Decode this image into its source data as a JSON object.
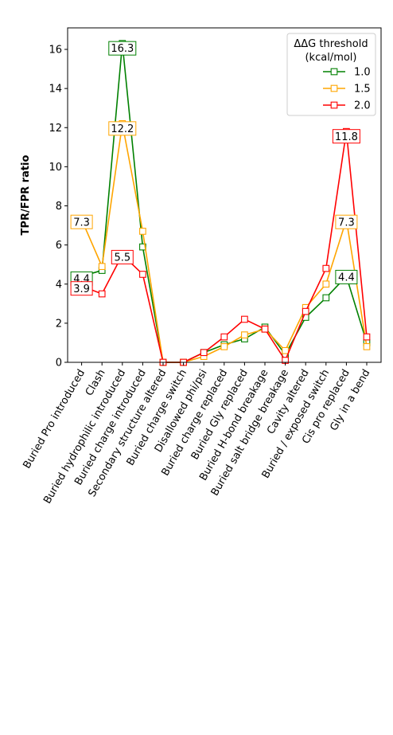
{
  "chart_data": {
    "type": "line",
    "categories": [
      "Buried Pro introduced",
      "Clash",
      "Buried hydrophilic introduced",
      "Buried charge introduced",
      "Secondary structure altered",
      "Buried charge switch",
      "Disallowed phi/psi",
      "Buried charge replaced",
      "Buried Gly replaced",
      "Buried H-bond breakage",
      "Buried salt bridge breakage",
      "Cavity altered",
      "Buried / exposed switch",
      "Cis pro replaced",
      "Gly in a bend"
    ],
    "series": [
      {
        "name": "1.0",
        "color": "#008000",
        "values": [
          4.4,
          4.7,
          16.3,
          5.9,
          0.0,
          0.0,
          0.5,
          0.9,
          1.2,
          1.8,
          0.4,
          2.3,
          3.3,
          4.4,
          1.0
        ]
      },
      {
        "name": "1.5",
        "color": "#FFA500",
        "values": [
          7.3,
          4.9,
          12.2,
          6.7,
          0.0,
          0.0,
          0.3,
          0.8,
          1.4,
          1.7,
          0.6,
          2.8,
          4.0,
          7.3,
          0.8
        ]
      },
      {
        "name": "2.0",
        "color": "#FF0000",
        "values": [
          3.9,
          3.5,
          5.5,
          4.5,
          0.0,
          0.0,
          0.5,
          1.3,
          2.2,
          1.7,
          0.1,
          2.6,
          4.8,
          11.8,
          1.3
        ]
      }
    ],
    "annotations": [
      {
        "series": 0,
        "index": 0,
        "text": "4.4"
      },
      {
        "series": 1,
        "index": 0,
        "text": "7.3"
      },
      {
        "series": 2,
        "index": 0,
        "text": "3.9"
      },
      {
        "series": 0,
        "index": 2,
        "text": "16.3"
      },
      {
        "series": 1,
        "index": 2,
        "text": "12.2"
      },
      {
        "series": 2,
        "index": 2,
        "text": "5.5"
      },
      {
        "series": 0,
        "index": 13,
        "text": "4.4"
      },
      {
        "series": 1,
        "index": 13,
        "text": "7.3"
      },
      {
        "series": 2,
        "index": 13,
        "text": "11.8"
      }
    ],
    "title": "",
    "xlabel": "",
    "ylabel": "TPR/FPR ratio",
    "ylim": [
      0,
      17.1
    ],
    "yticks": [
      0,
      2,
      4,
      6,
      8,
      10,
      12,
      14,
      16
    ],
    "grid": false,
    "legend": {
      "title_line1": "ΔΔG threshold",
      "title_line2": "(kcal/mol)",
      "placement": "top-right"
    }
  }
}
